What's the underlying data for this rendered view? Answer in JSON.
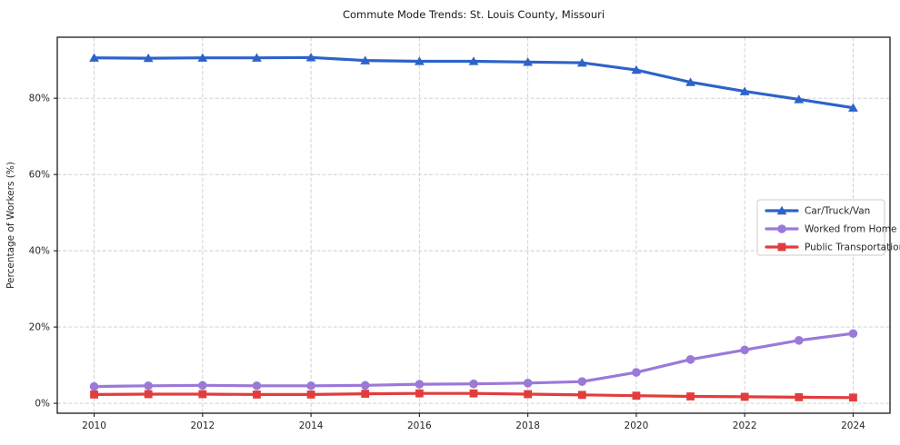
{
  "title": "Commute Mode Trends: St. Louis County, Missouri",
  "chart_data": {
    "type": "line",
    "title": "Commute Mode Trends: St. Louis County, Missouri",
    "xlabel": "",
    "ylabel": "Percentage of Workers (%)",
    "x": [
      2010,
      2011,
      2012,
      2013,
      2014,
      2015,
      2016,
      2017,
      2018,
      2019,
      2020,
      2021,
      2022,
      2023,
      2024
    ],
    "x_ticks": [
      2010,
      2012,
      2014,
      2016,
      2018,
      2020,
      2022,
      2024
    ],
    "x_tick_labels": [
      "2010",
      "2012",
      "2014",
      "2016",
      "2018",
      "2020",
      "2022",
      "2024"
    ],
    "y_ticks": [
      0,
      20,
      40,
      60,
      80
    ],
    "y_tick_labels": [
      "0%",
      "20%",
      "40%",
      "60%",
      "80%"
    ],
    "xlim": [
      2009.32,
      2024.68
    ],
    "ylim": [
      -2.6,
      96.0
    ],
    "grid": true,
    "grid_style": "dashed",
    "legend_position": "center-right",
    "background_color": "#ffffff",
    "grid_color": "#cccccc",
    "spine_color": "#1a1a1a",
    "series": [
      {
        "name": "Car/Truck/Van",
        "color": "#2d63c8",
        "marker": "triangle",
        "values": [
          90.6,
          90.5,
          90.6,
          90.6,
          90.7,
          89.9,
          89.7,
          89.7,
          89.5,
          89.3,
          87.4,
          84.2,
          81.8,
          79.7,
          77.5
        ]
      },
      {
        "name": "Worked from Home",
        "color": "#9b79d9",
        "marker": "circle",
        "values": [
          4.4,
          4.6,
          4.7,
          4.6,
          4.6,
          4.7,
          5.0,
          5.1,
          5.3,
          5.7,
          8.1,
          11.5,
          14.0,
          16.5,
          18.3
        ]
      },
      {
        "name": "Public Transportation",
        "color": "#e23d3d",
        "marker": "square",
        "values": [
          2.3,
          2.4,
          2.4,
          2.3,
          2.3,
          2.5,
          2.6,
          2.6,
          2.4,
          2.2,
          2.0,
          1.8,
          1.7,
          1.6,
          1.5
        ]
      }
    ]
  }
}
